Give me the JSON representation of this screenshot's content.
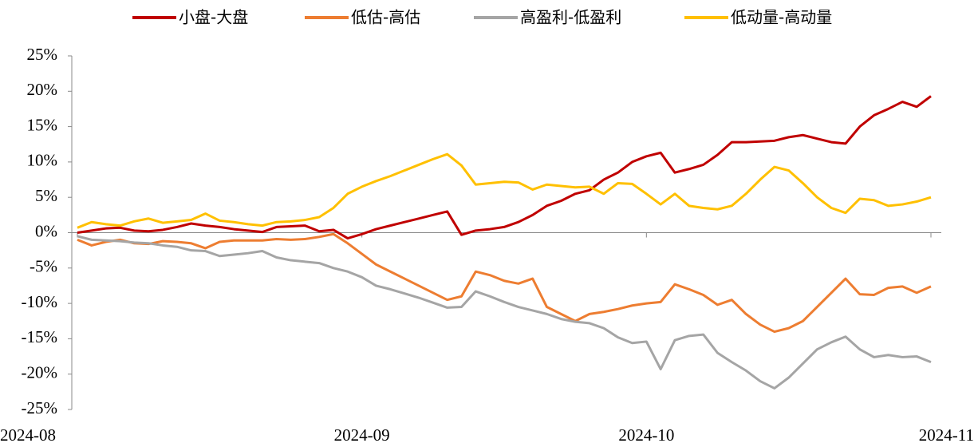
{
  "chart_data": {
    "type": "line",
    "categories": [
      "2024-08",
      null,
      null,
      null,
      null,
      null,
      null,
      null,
      null,
      null,
      null,
      null,
      null,
      null,
      null,
      null,
      null,
      null,
      null,
      null,
      "2024-09",
      null,
      null,
      null,
      null,
      null,
      null,
      null,
      null,
      null,
      null,
      null,
      null,
      null,
      null,
      null,
      null,
      null,
      null,
      null,
      "2024-10",
      null,
      null,
      null,
      null,
      null,
      null,
      null,
      null,
      null,
      null,
      null,
      null,
      null,
      null,
      null,
      null,
      null,
      null,
      null,
      "2024-11"
    ],
    "series": [
      {
        "name": "小盘-大盘",
        "color": "#C00000",
        "values": [
          0,
          0.3,
          0.6,
          0.7,
          0.3,
          0.2,
          0.4,
          0.8,
          1.3,
          1.0,
          0.8,
          0.5,
          0.3,
          0.1,
          0.8,
          0.9,
          1.0,
          0.2,
          0.4,
          -0.8,
          -0.2,
          0.5,
          1.0,
          1.5,
          2.0,
          2.5,
          3.0,
          -0.3,
          0.3,
          0.5,
          0.8,
          1.5,
          2.5,
          3.8,
          4.5,
          5.5,
          6.0,
          7.5,
          8.5,
          10.0,
          10.8,
          11.3,
          8.5,
          9.0,
          9.6,
          11.0,
          12.8,
          12.8,
          12.9,
          13.0,
          13.5,
          13.8,
          13.3,
          12.8,
          12.6,
          15.0,
          16.6,
          17.5,
          18.5,
          17.8,
          19.3
        ]
      },
      {
        "name": "低估-高估",
        "color": "#ED7D31",
        "values": [
          -1.0,
          -1.8,
          -1.3,
          -1.0,
          -1.5,
          -1.6,
          -1.2,
          -1.3,
          -1.5,
          -2.2,
          -1.3,
          -1.1,
          -1.1,
          -1.1,
          -0.9,
          -1.0,
          -0.9,
          -0.6,
          -0.2,
          -1.5,
          -3.0,
          -4.5,
          -5.5,
          -6.5,
          -7.5,
          -8.5,
          -9.5,
          -9.0,
          -5.5,
          -6.0,
          -6.8,
          -7.2,
          -6.5,
          -10.5,
          -11.5,
          -12.5,
          -11.5,
          -11.2,
          -10.8,
          -10.3,
          -10.0,
          -9.8,
          -7.3,
          -8.0,
          -8.8,
          -10.2,
          -9.5,
          -11.5,
          -13.0,
          -14.0,
          -13.5,
          -12.5,
          -10.5,
          -8.5,
          -6.5,
          -8.7,
          -8.8,
          -7.8,
          -7.6,
          -8.5,
          -7.6
        ]
      },
      {
        "name": "高盈利-低盈利",
        "color": "#A5A5A5",
        "values": [
          -0.5,
          -1.0,
          -1.1,
          -1.2,
          -1.4,
          -1.5,
          -1.8,
          -2.0,
          -2.5,
          -2.6,
          -3.3,
          -3.1,
          -2.9,
          -2.6,
          -3.5,
          -3.9,
          -4.1,
          -4.3,
          -5.0,
          -5.5,
          -6.3,
          -7.5,
          -8.0,
          -8.6,
          -9.2,
          -9.9,
          -10.6,
          -10.5,
          -8.3,
          -9.0,
          -9.8,
          -10.5,
          -11.0,
          -11.5,
          -12.2,
          -12.6,
          -12.8,
          -13.5,
          -14.8,
          -15.6,
          -15.4,
          -19.3,
          -15.2,
          -14.6,
          -14.4,
          -17.0,
          -18.3,
          -19.5,
          -21.0,
          -22.0,
          -20.5,
          -18.5,
          -16.5,
          -15.5,
          -14.7,
          -16.5,
          -17.6,
          -17.3,
          -17.6,
          -17.5,
          -18.3
        ]
      },
      {
        "name": "低动量-高动量",
        "color": "#FFC000",
        "values": [
          0.7,
          1.5,
          1.2,
          1.0,
          1.6,
          2.0,
          1.4,
          1.6,
          1.8,
          2.7,
          1.7,
          1.5,
          1.2,
          1.0,
          1.5,
          1.6,
          1.8,
          2.2,
          3.5,
          5.5,
          6.5,
          7.3,
          8.0,
          8.8,
          9.6,
          10.4,
          11.1,
          9.5,
          6.8,
          7.0,
          7.2,
          7.1,
          6.1,
          6.8,
          6.6,
          6.4,
          6.5,
          5.5,
          7.0,
          6.9,
          5.5,
          4.0,
          5.5,
          3.8,
          3.5,
          3.3,
          3.8,
          5.5,
          7.5,
          9.3,
          8.8,
          7.0,
          5.0,
          3.5,
          2.8,
          4.8,
          4.6,
          3.8,
          4.0,
          4.4,
          5.0
        ]
      }
    ],
    "ylim": [
      -25,
      25
    ],
    "yticks": [
      {
        "value": -25,
        "label": "-25%"
      },
      {
        "value": -20,
        "label": "-20%"
      },
      {
        "value": -15,
        "label": "-15%"
      },
      {
        "value": -10,
        "label": "-10%"
      },
      {
        "value": -5,
        "label": "-5%"
      },
      {
        "value": 0,
        "label": "0%"
      },
      {
        "value": 5,
        "label": "5%"
      },
      {
        "value": 10,
        "label": "10%"
      },
      {
        "value": 15,
        "label": "15%"
      },
      {
        "value": 20,
        "label": "20%"
      },
      {
        "value": 25,
        "label": "25%"
      }
    ],
    "legend": "top"
  }
}
